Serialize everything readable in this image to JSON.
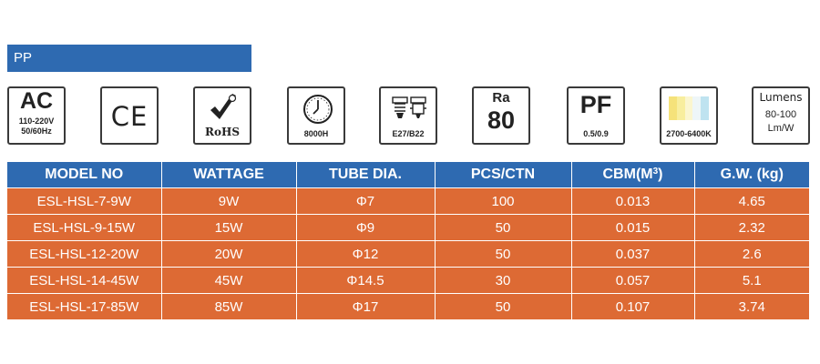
{
  "section": {
    "label": "PP"
  },
  "badges": {
    "ac": {
      "big": "AC",
      "voltage": "110-220V",
      "frequency": "50/60Hz",
      "icon": "ac-power-icon"
    },
    "ce": {
      "text": "CE",
      "icon": "ce-mark-icon"
    },
    "rohs": {
      "text": "RoHS",
      "icon": "rohs-check-icon"
    },
    "lifetime": {
      "hours": "8000H",
      "icon": "clock-icon"
    },
    "base": {
      "text": "E27/B22",
      "icon": "lamp-base-icon"
    },
    "ra": {
      "top": "Ra",
      "value": "80"
    },
    "pf": {
      "big": "PF",
      "range": "0.5/0.9"
    },
    "cct": {
      "range": "2700-6400K",
      "icon": "color-temperature-icon",
      "colors": [
        "#f5e27a",
        "#f8ee9e",
        "#fbf6cf",
        "#eef6f8",
        "#bfe3f0"
      ]
    },
    "lumens": {
      "title": "Lumens",
      "range": "80-100",
      "unit": "Lm/W"
    }
  },
  "table": {
    "headers": [
      "MODEL NO",
      "WATTAGE",
      "TUBE DIA.",
      "PCS/CTN",
      "CBM(M",
      "G.W. (kg)"
    ],
    "cbm_superscript": "3",
    "cbm_close": ")",
    "rows": [
      [
        "ESL-HSL-7-9W",
        "9W",
        "Φ7",
        "100",
        "0.013",
        "4.65"
      ],
      [
        "ESL-HSL-9-15W",
        "15W",
        "Φ9",
        "50",
        "0.015",
        "2.32"
      ],
      [
        "ESL-HSL-12-20W",
        "20W",
        "Φ12",
        "50",
        "0.037",
        "2.6"
      ],
      [
        "ESL-HSL-14-45W",
        "45W",
        "Φ14.5",
        "30",
        "0.057",
        "5.1"
      ],
      [
        "ESL-HSL-17-85W",
        "85W",
        "Φ17",
        "50",
        "0.107",
        "3.74"
      ]
    ]
  },
  "colors": {
    "header_blue": "#2e6ab1",
    "row_orange": "#dd6a34",
    "text_white": "#ffffff",
    "badge_border": "#3a3a3a"
  }
}
